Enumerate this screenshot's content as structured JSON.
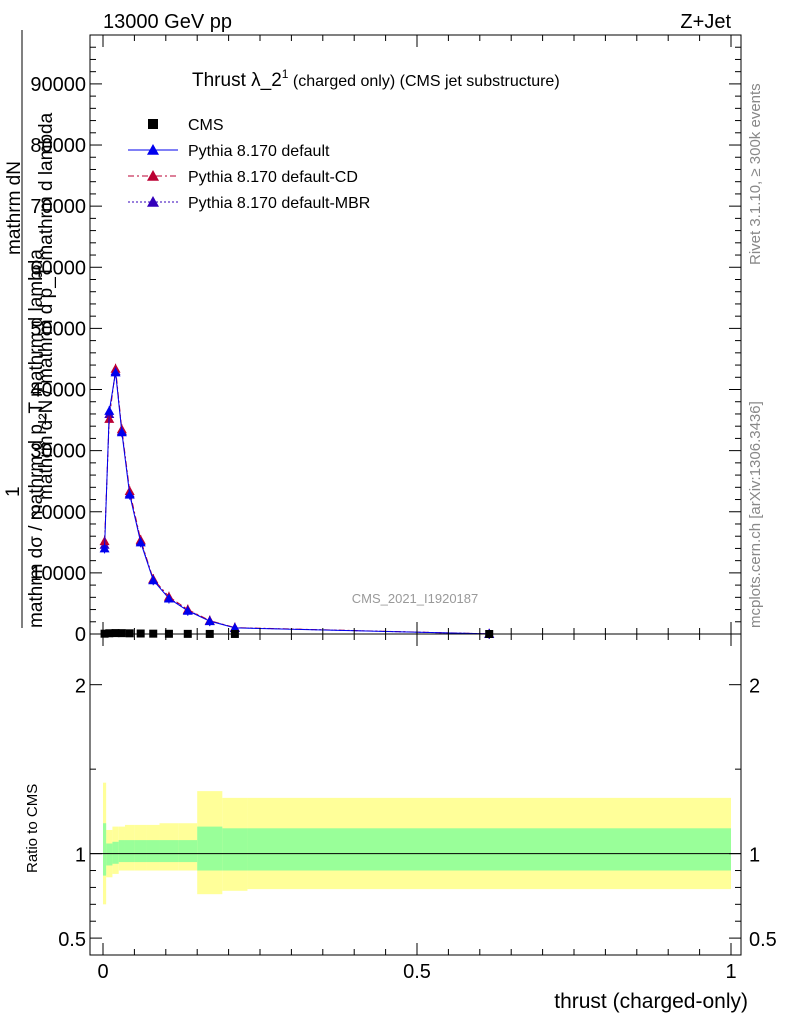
{
  "header": {
    "left": "13000 GeV pp",
    "right": "Z+Jet"
  },
  "title": {
    "main": "Thrust λ_2",
    "sup": "1",
    "rest": " (charged only) (CMS jet substructure)"
  },
  "ylabel": {
    "numerator": "1",
    "line1": "mathrm dσ / mathrm d p_T mathrm d lambda",
    "line2": "mathrm d²N / mathrm d p_T mathrm d lambda",
    "line3": "mathrm dN"
  },
  "side_top": "Rivet 3.1.10, ≥ 300k events",
  "side_bottom": "mcplots.cern.ch [arXiv:1306.3436]",
  "watermark": "CMS_2021_I1920187",
  "xlabel": "thrust (charged-only)",
  "ratio_ylabel": "Ratio to CMS",
  "legend": [
    {
      "label": "CMS",
      "color": "#000000",
      "marker": "square",
      "dash": ""
    },
    {
      "label": "Pythia 8.170 default",
      "color": "#0000ee",
      "marker": "triangle",
      "dash": ""
    },
    {
      "label": "Pythia 8.170 default-CD",
      "color": "#bb0033",
      "marker": "triangle",
      "dash": "6,3,2,3"
    },
    {
      "label": "Pythia 8.170 default-MBR",
      "color": "#3300bb",
      "marker": "triangle",
      "dash": "2,2"
    }
  ],
  "chart_data": {
    "type": "line",
    "xlim": [
      0,
      1
    ],
    "ylim": [
      0,
      98000
    ],
    "ratio_ylim": [
      0.4,
      2.3
    ],
    "x_ticks": [
      {
        "v": 0,
        "label": "0"
      },
      {
        "v": 0.5,
        "label": "0.5"
      },
      {
        "v": 1,
        "label": "1"
      }
    ],
    "y_ticks": [
      {
        "v": 0,
        "label": "0"
      },
      {
        "v": 10000,
        "label": "10000"
      },
      {
        "v": 20000,
        "label": "20000"
      },
      {
        "v": 30000,
        "label": "30000"
      },
      {
        "v": 40000,
        "label": "40000"
      },
      {
        "v": 50000,
        "label": "50000"
      },
      {
        "v": 60000,
        "label": "60000"
      },
      {
        "v": 70000,
        "label": "70000"
      },
      {
        "v": 80000,
        "label": "80000"
      },
      {
        "v": 90000,
        "label": "90000"
      }
    ],
    "ratio_ticks": [
      {
        "v": 0.5,
        "label": "0.5"
      },
      {
        "v": 1,
        "label": "1"
      },
      {
        "v": 2,
        "label": "2"
      }
    ],
    "bin_edges": [
      0,
      0.005,
      0.015,
      0.025,
      0.035,
      0.05,
      0.07,
      0.09,
      0.12,
      0.15,
      0.19,
      0.23,
      1.0
    ],
    "cms": {
      "x": [
        0.0025,
        0.01,
        0.02,
        0.03,
        0.0425,
        0.06,
        0.08,
        0.105,
        0.135,
        0.17,
        0.21,
        0.615
      ],
      "y": [
        50,
        120,
        150,
        140,
        110,
        80,
        55,
        35,
        22,
        12,
        6,
        1
      ]
    },
    "series": [
      {
        "name": "Pythia 8.170 default",
        "x": [
          0.0025,
          0.01,
          0.02,
          0.03,
          0.0425,
          0.06,
          0.08,
          0.105,
          0.135,
          0.17,
          0.21,
          0.615
        ],
        "y": [
          14000,
          36500,
          42800,
          33000,
          22800,
          15000,
          8800,
          5800,
          3800,
          2100,
          1000,
          20
        ]
      },
      {
        "name": "Pythia 8.170 default-CD",
        "x": [
          0.0025,
          0.01,
          0.02,
          0.03,
          0.0425,
          0.06,
          0.08,
          0.105,
          0.135,
          0.17,
          0.21,
          0.615
        ],
        "y": [
          15200,
          35200,
          43400,
          33500,
          23400,
          15400,
          9000,
          6100,
          4000,
          2200,
          1050,
          22
        ]
      },
      {
        "name": "Pythia 8.170 default-MBR",
        "x": [
          0.0025,
          0.01,
          0.02,
          0.03,
          0.0425,
          0.06,
          0.08,
          0.105,
          0.135,
          0.17,
          0.21,
          0.615
        ],
        "y": [
          14600,
          36000,
          43000,
          33200,
          23000,
          15200,
          8900,
          5900,
          3900,
          2150,
          1020,
          21
        ]
      }
    ],
    "ratio_bands": {
      "inner": [
        [
          0.87,
          1.18
        ],
        [
          0.93,
          1.06
        ],
        [
          0.94,
          1.07
        ],
        [
          0.95,
          1.08
        ],
        [
          0.95,
          1.08
        ],
        [
          0.95,
          1.08
        ],
        [
          0.95,
          1.08
        ],
        [
          0.95,
          1.08
        ],
        [
          0.95,
          1.08
        ],
        [
          0.9,
          1.16
        ],
        [
          0.9,
          1.15
        ],
        [
          0.9,
          1.15
        ]
      ],
      "outer": [
        [
          0.7,
          1.42
        ],
        [
          0.86,
          1.14
        ],
        [
          0.88,
          1.16
        ],
        [
          0.9,
          1.16
        ],
        [
          0.9,
          1.17
        ],
        [
          0.9,
          1.17
        ],
        [
          0.9,
          1.17
        ],
        [
          0.9,
          1.18
        ],
        [
          0.9,
          1.18
        ],
        [
          0.76,
          1.37
        ],
        [
          0.78,
          1.33
        ],
        [
          0.79,
          1.33
        ]
      ]
    }
  }
}
